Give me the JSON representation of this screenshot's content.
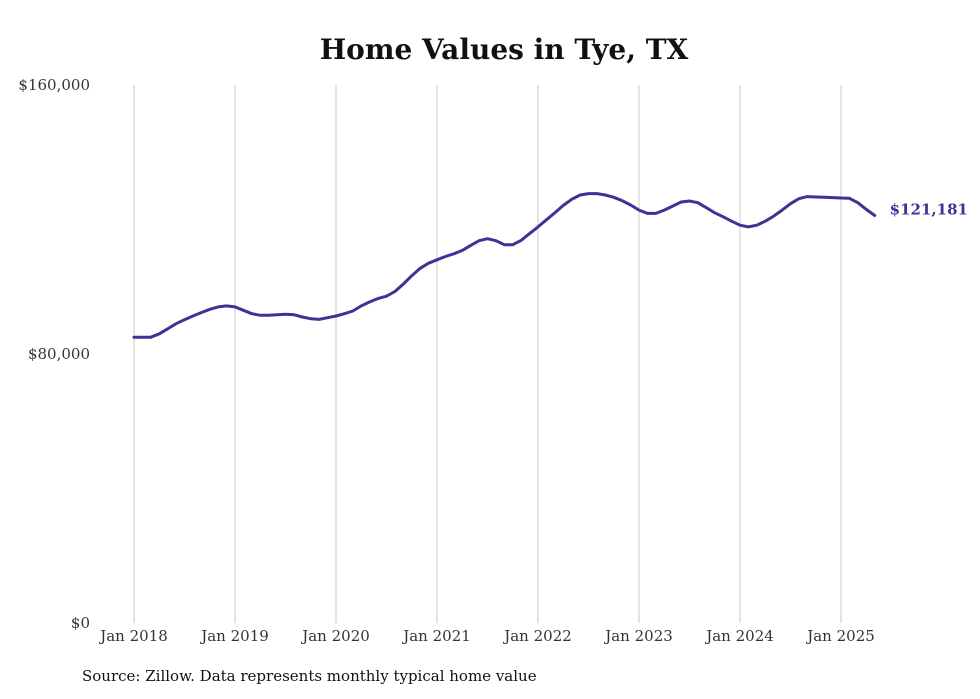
{
  "chart_data": {
    "type": "line",
    "title": "Home Values in Tye, TX",
    "xlabel": "",
    "ylabel": "",
    "ylim": [
      0,
      160000
    ],
    "y_ticks": [
      "$160,000",
      "$80,000",
      "$0"
    ],
    "y_tick_values": [
      160000,
      80000,
      0
    ],
    "x_ticks": [
      "Jan 2018",
      "Jan 2019",
      "Jan 2020",
      "Jan 2021",
      "Jan 2022",
      "Jan 2023",
      "Jan 2024",
      "Jan 2025"
    ],
    "grid": "vertical",
    "line_color": "#3b3494",
    "end_label": "$121,181",
    "series": [
      {
        "values": [
          {
            "x": "2018-01",
            "y": 85000
          },
          {
            "x": "2018-02",
            "y": 85000
          },
          {
            "x": "2018-03",
            "y": 85000
          },
          {
            "x": "2018-04",
            "y": 86000
          },
          {
            "x": "2018-05",
            "y": 87500
          },
          {
            "x": "2018-06",
            "y": 89000
          },
          {
            "x": "2018-07",
            "y": 90200
          },
          {
            "x": "2018-08",
            "y": 91300
          },
          {
            "x": "2018-09",
            "y": 92300
          },
          {
            "x": "2018-10",
            "y": 93300
          },
          {
            "x": "2018-11",
            "y": 94000
          },
          {
            "x": "2018-12",
            "y": 94300
          },
          {
            "x": "2019-01",
            "y": 94000
          },
          {
            "x": "2019-02",
            "y": 93000
          },
          {
            "x": "2019-03",
            "y": 92000
          },
          {
            "x": "2019-04",
            "y": 91500
          },
          {
            "x": "2019-05",
            "y": 91500
          },
          {
            "x": "2019-06",
            "y": 91700
          },
          {
            "x": "2019-07",
            "y": 91800
          },
          {
            "x": "2019-08",
            "y": 91700
          },
          {
            "x": "2019-09",
            "y": 91000
          },
          {
            "x": "2019-10",
            "y": 90500
          },
          {
            "x": "2019-11",
            "y": 90300
          },
          {
            "x": "2019-12",
            "y": 90800
          },
          {
            "x": "2020-01",
            "y": 91300
          },
          {
            "x": "2020-02",
            "y": 92000
          },
          {
            "x": "2020-03",
            "y": 92800
          },
          {
            "x": "2020-04",
            "y": 94300
          },
          {
            "x": "2020-05",
            "y": 95500
          },
          {
            "x": "2020-06",
            "y": 96500
          },
          {
            "x": "2020-07",
            "y": 97200
          },
          {
            "x": "2020-08",
            "y": 98600
          },
          {
            "x": "2020-09",
            "y": 100800
          },
          {
            "x": "2020-10",
            "y": 103300
          },
          {
            "x": "2020-11",
            "y": 105500
          },
          {
            "x": "2020-12",
            "y": 107000
          },
          {
            "x": "2021-01",
            "y": 108000
          },
          {
            "x": "2021-02",
            "y": 109000
          },
          {
            "x": "2021-03",
            "y": 109800
          },
          {
            "x": "2021-04",
            "y": 110800
          },
          {
            "x": "2021-05",
            "y": 112300
          },
          {
            "x": "2021-06",
            "y": 113700
          },
          {
            "x": "2021-07",
            "y": 114300
          },
          {
            "x": "2021-08",
            "y": 113700
          },
          {
            "x": "2021-09",
            "y": 112500
          },
          {
            "x": "2021-10",
            "y": 112500
          },
          {
            "x": "2021-11",
            "y": 113800
          },
          {
            "x": "2021-12",
            "y": 115800
          },
          {
            "x": "2022-01",
            "y": 117800
          },
          {
            "x": "2022-02",
            "y": 119900
          },
          {
            "x": "2022-03",
            "y": 122000
          },
          {
            "x": "2022-04",
            "y": 124200
          },
          {
            "x": "2022-05",
            "y": 126000
          },
          {
            "x": "2022-06",
            "y": 127300
          },
          {
            "x": "2022-07",
            "y": 127700
          },
          {
            "x": "2022-08",
            "y": 127700
          },
          {
            "x": "2022-09",
            "y": 127300
          },
          {
            "x": "2022-10",
            "y": 126600
          },
          {
            "x": "2022-11",
            "y": 125600
          },
          {
            "x": "2022-12",
            "y": 124300
          },
          {
            "x": "2023-01",
            "y": 122800
          },
          {
            "x": "2023-02",
            "y": 121800
          },
          {
            "x": "2023-03",
            "y": 121800
          },
          {
            "x": "2023-04",
            "y": 122800
          },
          {
            "x": "2023-05",
            "y": 124000
          },
          {
            "x": "2023-06",
            "y": 125200
          },
          {
            "x": "2023-07",
            "y": 125500
          },
          {
            "x": "2023-08",
            "y": 125000
          },
          {
            "x": "2023-09",
            "y": 123500
          },
          {
            "x": "2023-10",
            "y": 122000
          },
          {
            "x": "2023-11",
            "y": 120800
          },
          {
            "x": "2023-12",
            "y": 119500
          },
          {
            "x": "2024-01",
            "y": 118300
          },
          {
            "x": "2024-02",
            "y": 117800
          },
          {
            "x": "2024-03",
            "y": 118300
          },
          {
            "x": "2024-04",
            "y": 119500
          },
          {
            "x": "2024-05",
            "y": 121000
          },
          {
            "x": "2024-06",
            "y": 122800
          },
          {
            "x": "2024-07",
            "y": 124700
          },
          {
            "x": "2024-08",
            "y": 126200
          },
          {
            "x": "2024-09",
            "y": 126800
          },
          {
            "x": "2024-10",
            "y": 126700
          },
          {
            "x": "2024-11",
            "y": 126600
          },
          {
            "x": "2024-12",
            "y": 126500
          },
          {
            "x": "2025-01",
            "y": 126400
          },
          {
            "x": "2025-02",
            "y": 126300
          },
          {
            "x": "2025-03",
            "y": 125000
          },
          {
            "x": "2025-04",
            "y": 123000
          },
          {
            "x": "2025-05",
            "y": 121181
          }
        ]
      }
    ]
  },
  "source_note": "Source: Zillow. Data represents monthly typical home value"
}
